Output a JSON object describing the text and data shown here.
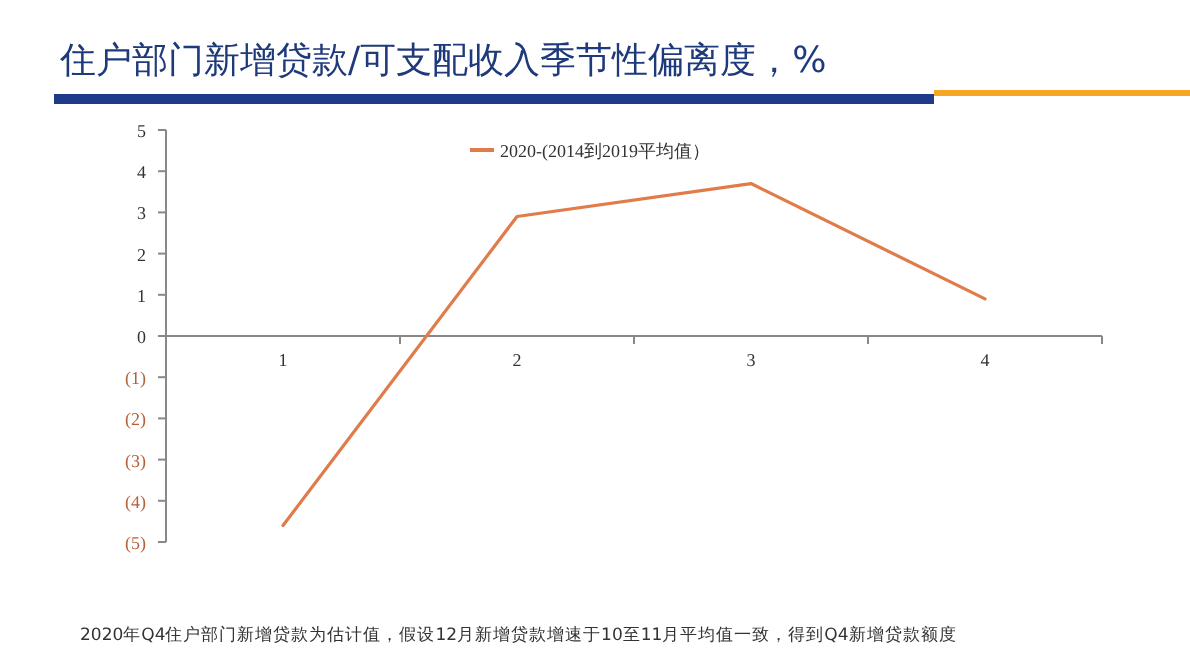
{
  "chart_data": {
    "type": "line",
    "title": "住户部门新增贷款/可支配收入季节性偏离度，%",
    "categories": [
      "1",
      "2",
      "3",
      "4"
    ],
    "series": [
      {
        "name": "2020-(2014到2019平均值）",
        "color": "#e07b4a",
        "values": [
          -4.6,
          2.9,
          3.7,
          0.9
        ]
      }
    ],
    "ylim": [
      -5,
      5
    ],
    "yticks": [
      {
        "value": -5,
        "label": "(5)"
      },
      {
        "value": -4,
        "label": "(4)"
      },
      {
        "value": -3,
        "label": "(3)"
      },
      {
        "value": -2,
        "label": "(2)"
      },
      {
        "value": -1,
        "label": "(1)"
      },
      0,
      1,
      2,
      3,
      4,
      5
    ],
    "legend": "top",
    "grid": false,
    "marker": "none",
    "line_style": "solid",
    "annotations": [
      "2020年Q4住户部门新增贷款为估计值，假设12月新增贷款增速于10至11月平均值一致，得到Q4新增贷款额度"
    ]
  }
}
